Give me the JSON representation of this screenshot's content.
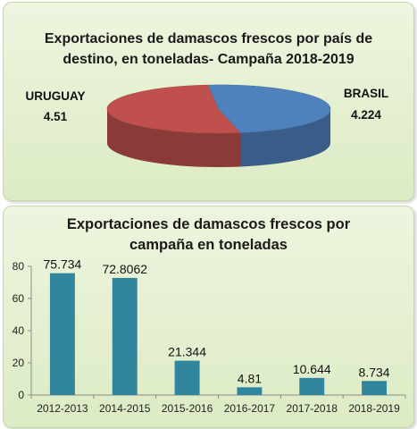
{
  "chart_data": [
    {
      "type": "pie",
      "title_lines": [
        "Exportaciones de damascos frescos por país de",
        "destino, en toneladas- Campaña 2018-2019"
      ],
      "slices": [
        {
          "name": "URUGUAY",
          "label": "4.51",
          "value": 4.51,
          "color": "#c0504d"
        },
        {
          "name": "BRASIL",
          "label": "4.224",
          "value": 4.224,
          "color": "#4f81bd"
        }
      ]
    },
    {
      "type": "bar",
      "title_lines": [
        "Exportaciones de damascos frescos por",
        "campaña en toneladas"
      ],
      "categories": [
        "2012-2013",
        "2014-2015",
        "2015-2016",
        "2016-2017",
        "2017-2018",
        "2018-2019"
      ],
      "values": [
        75.734,
        72.8062,
        21.344,
        4.81,
        10.644,
        8.734
      ],
      "value_labels": [
        "75.734",
        "72.8062",
        "21.344",
        "4.81",
        "10.644",
        "8.734"
      ],
      "ylim": [
        0,
        80
      ],
      "yticks": [
        0,
        20,
        40,
        60,
        80
      ],
      "bar_color": "#31859c"
    }
  ]
}
